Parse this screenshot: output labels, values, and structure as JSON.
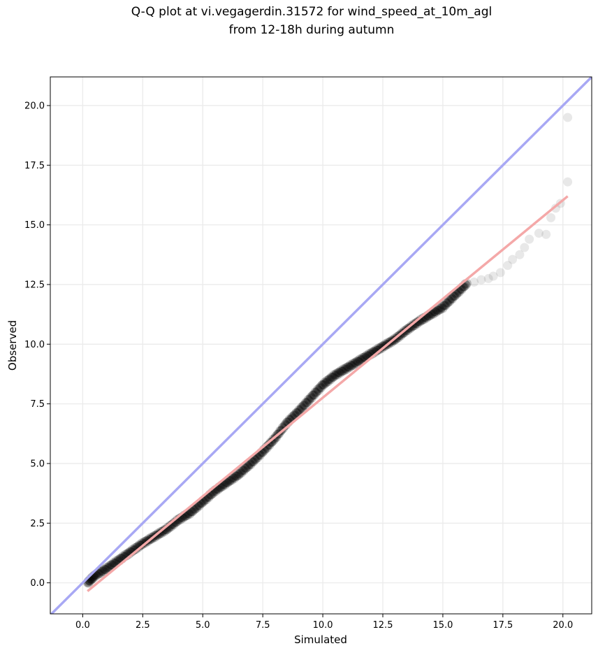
{
  "chart_data": {
    "type": "scatter",
    "title_line1": "Q-Q plot at vi.vegagerdin.31572 for wind_speed_at_10m_agl",
    "title_line2": "from 12-18h during autumn",
    "xlabel": "Simulated",
    "ylabel": "Observed",
    "xlim": [
      -1.35,
      21.2
    ],
    "ylim": [
      -1.3,
      21.2
    ],
    "xticks": [
      0.0,
      2.5,
      5.0,
      7.5,
      10.0,
      12.5,
      15.0,
      17.5,
      20.0
    ],
    "xtick_labels": [
      "0.0",
      "2.5",
      "5.0",
      "7.5",
      "10.0",
      "12.5",
      "15.0",
      "17.5",
      "20.0"
    ],
    "yticks": [
      0.0,
      2.5,
      5.0,
      7.5,
      10.0,
      12.5,
      15.0,
      17.5,
      20.0
    ],
    "ytick_labels": [
      "0.0",
      "2.5",
      "5.0",
      "7.5",
      "10.0",
      "12.5",
      "15.0",
      "17.5",
      "20.0"
    ],
    "grid": true,
    "reference_line": {
      "slope": 1,
      "intercept": 0,
      "color": "#a8a8f4"
    },
    "fit_line": {
      "x": [
        0.2,
        20.2
      ],
      "y": [
        -0.35,
        16.2
      ],
      "color": "#f4a8a8"
    },
    "point_color": "#000000",
    "quantile_curve": [
      [
        0.2,
        0.0
      ],
      [
        0.5,
        0.3
      ],
      [
        1.0,
        0.6
      ],
      [
        1.5,
        0.95
      ],
      [
        2.0,
        1.3
      ],
      [
        2.5,
        1.65
      ],
      [
        3.0,
        1.95
      ],
      [
        3.5,
        2.25
      ],
      [
        4.0,
        2.65
      ],
      [
        4.5,
        2.95
      ],
      [
        5.0,
        3.4
      ],
      [
        5.5,
        3.85
      ],
      [
        6.0,
        4.2
      ],
      [
        6.5,
        4.55
      ],
      [
        7.0,
        5.0
      ],
      [
        7.5,
        5.5
      ],
      [
        8.0,
        6.05
      ],
      [
        8.5,
        6.7
      ],
      [
        9.0,
        7.2
      ],
      [
        9.5,
        7.75
      ],
      [
        10.0,
        8.3
      ],
      [
        10.5,
        8.7
      ],
      [
        11.0,
        9.0
      ],
      [
        11.5,
        9.3
      ],
      [
        12.0,
        9.6
      ],
      [
        12.5,
        9.9
      ],
      [
        13.0,
        10.2
      ],
      [
        13.5,
        10.6
      ],
      [
        14.0,
        10.95
      ],
      [
        14.5,
        11.25
      ],
      [
        15.0,
        11.55
      ],
      [
        15.5,
        12.05
      ],
      [
        16.0,
        12.55
      ]
    ],
    "tail_points": [
      [
        16.3,
        12.6
      ],
      [
        16.6,
        12.7
      ],
      [
        16.9,
        12.75
      ],
      [
        17.1,
        12.85
      ],
      [
        17.4,
        13.0
      ],
      [
        17.7,
        13.3
      ],
      [
        17.9,
        13.55
      ],
      [
        18.2,
        13.75
      ],
      [
        18.4,
        14.05
      ],
      [
        18.6,
        14.4
      ],
      [
        19.0,
        14.65
      ],
      [
        19.3,
        14.6
      ],
      [
        19.5,
        15.3
      ],
      [
        19.7,
        15.7
      ],
      [
        19.9,
        15.9
      ],
      [
        20.2,
        16.8
      ],
      [
        20.2,
        19.5
      ]
    ]
  }
}
